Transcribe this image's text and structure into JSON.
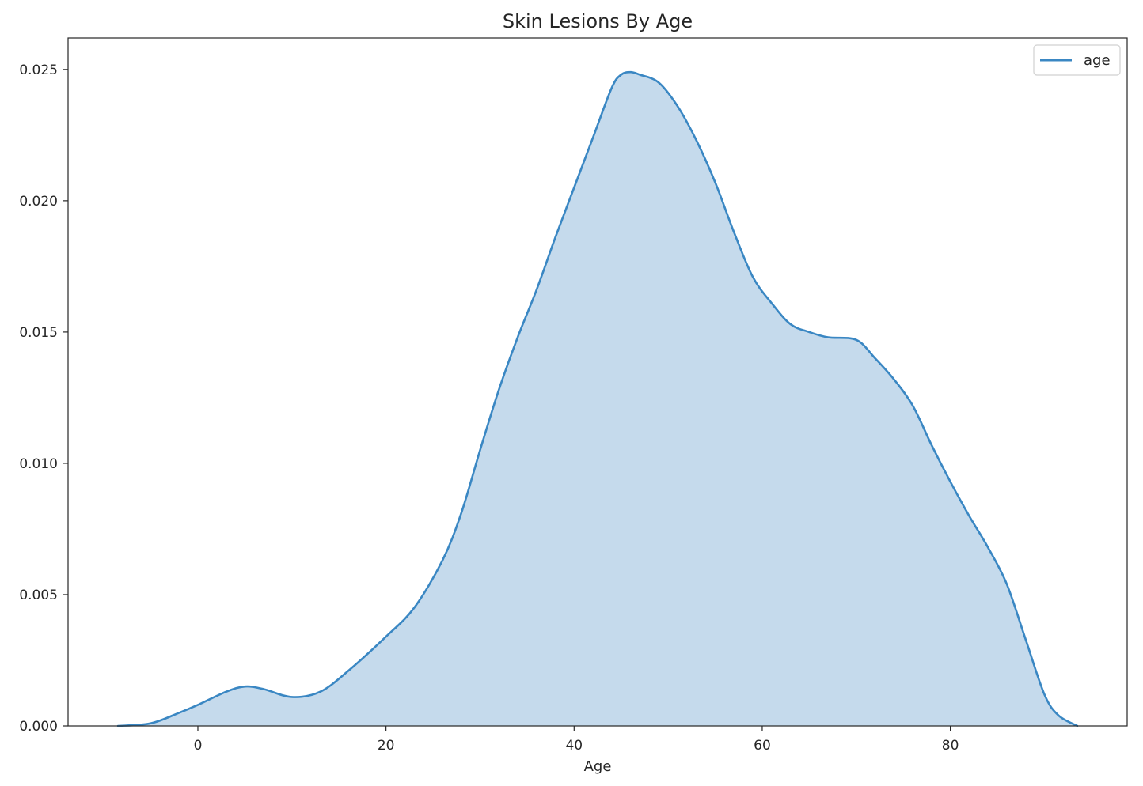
{
  "chart_data": {
    "type": "area",
    "title": "Skin Lesions By Age",
    "xlabel": "Age",
    "ylabel": "",
    "xlim": [
      -13.8,
      98.8
    ],
    "ylim": [
      0,
      0.0262
    ],
    "x_ticks": [
      0,
      20,
      40,
      60,
      80
    ],
    "y_ticks": [
      0.0,
      0.005,
      0.01,
      0.015,
      0.02,
      0.025
    ],
    "x_tick_labels": [
      "0",
      "20",
      "40",
      "60",
      "80"
    ],
    "y_tick_labels": [
      "0.000",
      "0.005",
      "0.010",
      "0.015",
      "0.020",
      "0.025"
    ],
    "grid": false,
    "legend_position": "top-right",
    "series": [
      {
        "name": "age",
        "color": "#3a87c3",
        "fill_color": "#c5daec",
        "x": [
          -8.5,
          -5,
          -2,
          0,
          3,
          5,
          7,
          10,
          13,
          16,
          20,
          23,
          26,
          28,
          30,
          32,
          34,
          36,
          38,
          40,
          42,
          44,
          45,
          46,
          47,
          49,
          51,
          53,
          55,
          57,
          59,
          61,
          63,
          65,
          67,
          70,
          72,
          74,
          76,
          78,
          80,
          82,
          84,
          86,
          88,
          90,
          91.5,
          93.5
        ],
        "values": [
          0.0,
          0.0001,
          0.0005,
          0.0008,
          0.0013,
          0.0015,
          0.0014,
          0.0011,
          0.0013,
          0.0021,
          0.0034,
          0.0045,
          0.0063,
          0.0081,
          0.0105,
          0.0128,
          0.0148,
          0.0166,
          0.0186,
          0.0205,
          0.0224,
          0.0243,
          0.0248,
          0.0249,
          0.0248,
          0.0245,
          0.0236,
          0.0223,
          0.0207,
          0.0188,
          0.0171,
          0.0161,
          0.0153,
          0.015,
          0.0148,
          0.0147,
          0.014,
          0.0132,
          0.0122,
          0.0107,
          0.0093,
          0.008,
          0.0068,
          0.0054,
          0.0033,
          0.0012,
          0.0004,
          0.0
        ]
      }
    ]
  }
}
